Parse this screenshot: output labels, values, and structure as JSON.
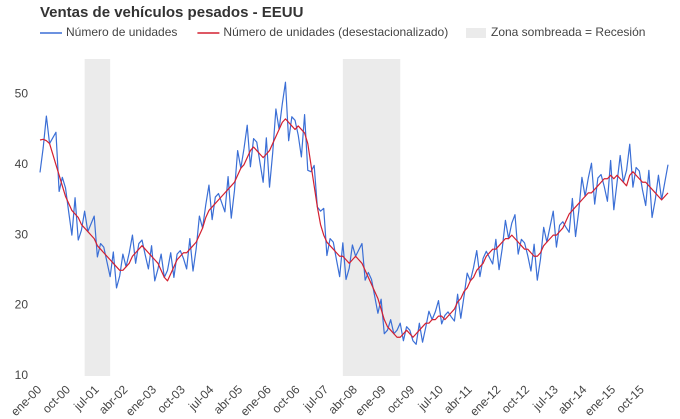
{
  "chart_data": {
    "type": "line",
    "title": "Ventas de vehículos pesados - EEUU",
    "categories": [
      "ene-00",
      null,
      null,
      null,
      null,
      null,
      null,
      null,
      null,
      "oct-00",
      null,
      null,
      null,
      null,
      null,
      null,
      null,
      null,
      "jul-01",
      null,
      null,
      null,
      null,
      null,
      null,
      null,
      null,
      "abr-02",
      null,
      null,
      null,
      null,
      null,
      null,
      null,
      null,
      "ene-03",
      null,
      null,
      null,
      null,
      null,
      null,
      null,
      null,
      "oct-03",
      null,
      null,
      null,
      null,
      null,
      null,
      null,
      null,
      "jul-04",
      null,
      null,
      null,
      null,
      null,
      null,
      null,
      null,
      "abr-05",
      null,
      null,
      null,
      null,
      null,
      null,
      null,
      null,
      "ene-06",
      null,
      null,
      null,
      null,
      null,
      null,
      null,
      null,
      "oct-06",
      null,
      null,
      null,
      null,
      null,
      null,
      null,
      null,
      "jul-07",
      null,
      null,
      null,
      null,
      null,
      null,
      null,
      null,
      "abr-08",
      null,
      null,
      null,
      null,
      null,
      null,
      null,
      null,
      "ene-09",
      null,
      null,
      null,
      null,
      null,
      null,
      null,
      null,
      "oct-09",
      null,
      null,
      null,
      null,
      null,
      null,
      null,
      null,
      "jul-10",
      null,
      null,
      null,
      null,
      null,
      null,
      null,
      null,
      "abr-11",
      null,
      null,
      null,
      null,
      null,
      null,
      null,
      null,
      "ene-12",
      null,
      null,
      null,
      null,
      null,
      null,
      null,
      null,
      "oct-12",
      null,
      null,
      null,
      null,
      null,
      null,
      null,
      null,
      "jul-13",
      null,
      null,
      null,
      null,
      null,
      null,
      null,
      null,
      "abr-14",
      null,
      null,
      null,
      null,
      null,
      null,
      null,
      null,
      "ene-15",
      null,
      null,
      null,
      null,
      null,
      null,
      null,
      null,
      "oct-15",
      null,
      null,
      null,
      null,
      null,
      null,
      null,
      null
    ],
    "series": [
      {
        "name": "Número de unidades",
        "color": "#3b6fd6",
        "values": [
          38.9,
          42.4,
          46.9,
          43.0,
          43.8,
          44.6,
          36.2,
          38.2,
          36.7,
          33.3,
          30.0,
          35.3,
          29.3,
          30.7,
          33.4,
          30.5,
          31.6,
          32.7,
          26.9,
          28.8,
          28.3,
          26.2,
          24.1,
          27.6,
          22.5,
          24.2,
          27.3,
          25.5,
          27.5,
          30.0,
          26.0,
          28.8,
          29.3,
          27.2,
          25.2,
          28.5,
          23.5,
          25.2,
          27.3,
          24.0,
          25.0,
          27.5,
          24.0,
          27.3,
          27.8,
          26.7,
          25.2,
          29.5,
          24.9,
          28.1,
          32.7,
          31.0,
          34.3,
          37.1,
          32.2,
          35.4,
          35.9,
          34.6,
          33.3,
          38.3,
          32.4,
          36.3,
          42.0,
          39.5,
          42.3,
          45.6,
          39.7,
          43.7,
          43.2,
          40.3,
          37.5,
          43.8,
          36.8,
          41.7,
          47.9,
          45.0,
          48.6,
          51.7,
          43.4,
          46.8,
          46.3,
          44.2,
          41.1,
          47.1,
          39.2,
          39.0,
          39.9,
          34.0,
          33.4,
          33.8,
          27.1,
          29.5,
          29.0,
          26.5,
          24.1,
          28.9,
          23.7,
          25.3,
          28.6,
          27.0,
          27.9,
          28.8,
          23.6,
          24.7,
          23.7,
          21.3,
          18.9,
          20.9,
          16.0,
          16.5,
          18.0,
          16.0,
          16.5,
          17.5,
          15.0,
          17.0,
          16.5,
          15.0,
          14.5,
          17.5,
          14.8,
          16.9,
          19.2,
          18.0,
          19.1,
          20.7,
          17.4,
          18.6,
          19.1,
          18.4,
          17.8,
          21.6,
          18.2,
          21.3,
          24.6,
          23.5,
          25.4,
          27.8,
          24.1,
          26.7,
          27.7,
          26.8,
          25.9,
          29.4,
          25.1,
          28.1,
          32.1,
          29.5,
          31.7,
          32.9,
          27.3,
          29.4,
          28.9,
          27.1,
          24.9,
          28.7,
          23.6,
          26.6,
          31.1,
          29.0,
          31.2,
          33.4,
          28.3,
          31.4,
          31.9,
          31.1,
          30.4,
          35.2,
          29.8,
          33.4,
          38.2,
          35.5,
          38.1,
          40.2,
          34.4,
          38.1,
          38.6,
          36.9,
          34.8,
          40.6,
          33.6,
          37.4,
          41.3,
          37.5,
          39.2,
          42.9,
          36.8,
          39.6,
          39.1,
          36.4,
          34.2,
          39.2,
          32.5,
          35.0,
          38.5,
          35.0,
          37.5,
          40.0
        ]
      },
      {
        "name": "Número de unidades (desestacionalizado)",
        "color": "#d42030",
        "values": [
          43.5,
          43.6,
          43.4,
          43.0,
          41.5,
          40.0,
          38.5,
          37.0,
          35.5,
          34.5,
          33.5,
          33.0,
          32.5,
          31.5,
          31.0,
          30.5,
          30.0,
          29.5,
          28.5,
          28.0,
          27.5,
          27.0,
          26.5,
          26.0,
          25.5,
          25.0,
          25.0,
          25.5,
          26.0,
          27.0,
          27.5,
          28.0,
          28.5,
          28.0,
          27.5,
          27.0,
          26.5,
          26.0,
          25.0,
          24.0,
          23.5,
          24.5,
          25.5,
          26.5,
          27.0,
          27.5,
          27.5,
          28.0,
          28.5,
          29.0,
          30.0,
          31.0,
          32.5,
          33.5,
          34.0,
          34.5,
          35.0,
          35.5,
          36.0,
          36.5,
          37.0,
          37.5,
          38.5,
          39.5,
          40.0,
          41.0,
          42.0,
          42.5,
          42.0,
          41.5,
          41.0,
          41.5,
          42.0,
          43.0,
          44.0,
          45.0,
          46.0,
          46.5,
          46.0,
          45.5,
          45.0,
          45.5,
          45.0,
          44.5,
          43.0,
          40.0,
          37.0,
          34.0,
          31.5,
          30.0,
          29.0,
          28.5,
          28.0,
          27.5,
          27.0,
          27.0,
          26.5,
          26.0,
          26.5,
          27.0,
          26.5,
          26.0,
          25.0,
          24.0,
          23.0,
          22.0,
          21.0,
          19.5,
          18.0,
          17.0,
          16.5,
          16.0,
          15.5,
          15.5,
          16.0,
          16.5,
          16.0,
          15.5,
          16.0,
          16.5,
          17.0,
          17.5,
          17.5,
          18.0,
          18.0,
          18.5,
          18.5,
          18.0,
          18.5,
          19.0,
          19.5,
          20.5,
          21.0,
          22.0,
          22.5,
          23.5,
          24.0,
          25.0,
          25.5,
          26.0,
          27.0,
          27.5,
          28.0,
          28.0,
          28.5,
          29.0,
          29.5,
          29.5,
          30.0,
          29.5,
          29.0,
          28.5,
          28.0,
          28.0,
          27.5,
          27.0,
          27.0,
          27.5,
          28.5,
          29.0,
          29.5,
          30.0,
          30.0,
          30.5,
          31.0,
          32.0,
          33.0,
          33.5,
          34.0,
          34.5,
          35.0,
          35.5,
          36.0,
          36.0,
          36.5,
          37.0,
          37.5,
          38.0,
          38.0,
          38.5,
          38.0,
          38.5,
          38.0,
          37.5,
          37.0,
          38.5,
          39.0,
          38.5,
          38.0,
          37.5,
          37.5,
          37.0,
          36.5,
          36.0,
          35.5,
          35.0,
          35.5,
          36.0
        ]
      }
    ],
    "shading": {
      "label": "Zona sombreada = Recesión",
      "color": "#ebebeb",
      "ranges": [
        [
          14,
          22
        ],
        [
          95,
          113
        ]
      ]
    },
    "ylim": [
      10,
      55
    ],
    "yticks": [
      10,
      20,
      30,
      40,
      50
    ],
    "grid": false
  }
}
